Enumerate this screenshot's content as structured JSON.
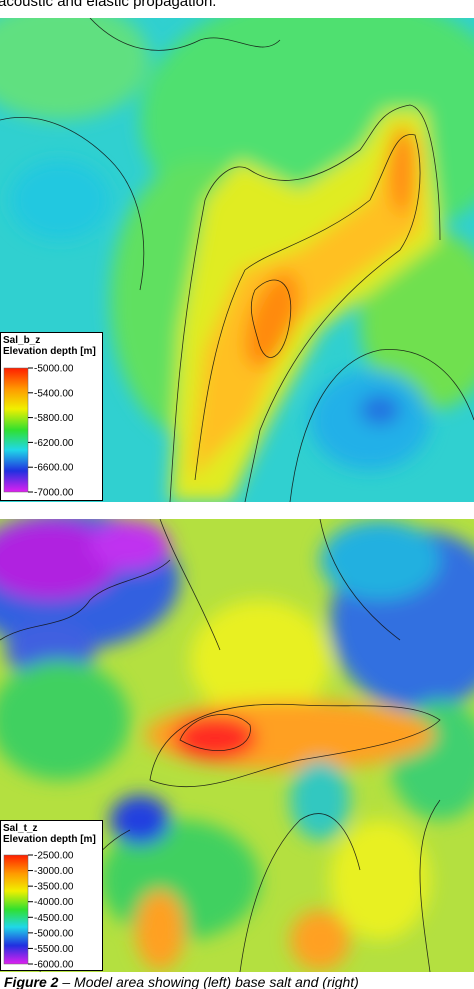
{
  "header": {
    "text": "acoustic and elastic propagation."
  },
  "panels": [
    {
      "legend_title": "Sal_b_z",
      "legend_subtitle": "Elevation depth [m]",
      "clim": [
        -7000,
        -5000
      ],
      "ticks": [
        {
          "value": -5000,
          "label": "-5000.00"
        },
        {
          "value": -5400,
          "label": "-5400.00"
        },
        {
          "value": -5800,
          "label": "-5800.00"
        },
        {
          "value": -6200,
          "label": "-6200.00"
        },
        {
          "value": -6600,
          "label": "-6600.00"
        },
        {
          "value": -7000,
          "label": "-7000.00"
        }
      ]
    },
    {
      "legend_title": "Sal_t_z",
      "legend_subtitle": "Elevation depth [m]",
      "clim": [
        -6000,
        -2500
      ],
      "ticks": [
        {
          "value": -2500,
          "label": "-2500.00"
        },
        {
          "value": -3000,
          "label": "-3000.00"
        },
        {
          "value": -3500,
          "label": "-3500.00"
        },
        {
          "value": -4000,
          "label": "-4000.00"
        },
        {
          "value": -4500,
          "label": "-4500.00"
        },
        {
          "value": -5000,
          "label": "-5000.00"
        },
        {
          "value": -5500,
          "label": "-5500.00"
        },
        {
          "value": -6000,
          "label": "-6000.00"
        }
      ]
    }
  ],
  "caption": {
    "label": "Figure 2",
    "text": " – Model area showing (left) base salt and (right)"
  }
}
